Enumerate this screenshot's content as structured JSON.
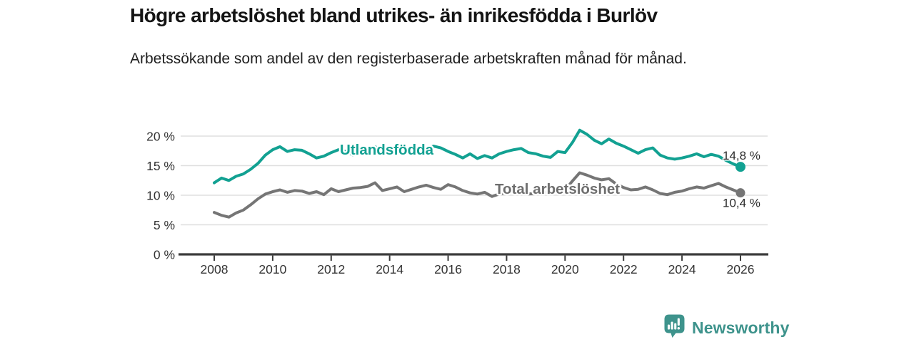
{
  "header": {
    "title": "Högre arbetslöshet bland utrikes- än inrikesfödda i Burlöv",
    "subtitle": "Arbetssökande som andel av den registerbaserade arbetskraften månad för månad."
  },
  "branding": {
    "wordmark": "Newsworthy",
    "color": "#3E938C",
    "icon": "newsworthy-speech-bubble-bar-chart-icon"
  },
  "colors": {
    "background": "#ffffff",
    "title_text": "#141414",
    "body_text": "#1f1f1f",
    "axis": "#3B3B3B",
    "tick_text": "#333333",
    "grid": "#DFDFDF",
    "series_foreign_born": "#12A192",
    "series_total": "#757575",
    "series_total_label": "#6E6E6E",
    "end_label_text": "#2B2B2B"
  },
  "chart_data": {
    "type": "line",
    "title": "Högre arbetslöshet bland utrikes- än inrikesfödda i Burlöv",
    "subtitle": "Arbetssökande som andel av den registerbaserade arbetskraften månad för månad.",
    "xlabel": "",
    "ylabel": "",
    "x_start": 2008,
    "x_step": 0.25,
    "x_end": 2026,
    "xticks": [
      2008,
      2010,
      2012,
      2014,
      2016,
      2018,
      2020,
      2022,
      2024,
      2026
    ],
    "yticks": [
      0,
      5,
      10,
      15,
      20
    ],
    "ytick_labels": [
      "0 %",
      "5 %",
      "10 %",
      "15 %",
      "20 %"
    ],
    "ylim": [
      0,
      22
    ],
    "grid": "horizontal-only",
    "legend": "inline-series-labels",
    "series": [
      {
        "name": "Utlandsfödda",
        "color": "#12A192",
        "label_color": "#12A192",
        "end_label": "14,8 %",
        "end_value": 14.8,
        "label_anchor": {
          "year": 2012.3,
          "value": 16.85
        },
        "values": [
          12.1,
          12.9,
          12.5,
          13.2,
          13.6,
          14.4,
          15.4,
          16.8,
          17.7,
          18.2,
          17.4,
          17.7,
          17.6,
          17.0,
          16.3,
          16.6,
          17.2,
          17.7,
          17.4,
          16.8,
          17.4,
          17.9,
          18.2,
          17.5,
          17.4,
          17.8,
          17.5,
          17.3,
          17.6,
          17.9,
          18.3,
          18.0,
          17.4,
          16.9,
          16.3,
          17.0,
          16.2,
          16.7,
          16.3,
          17.0,
          17.4,
          17.7,
          17.9,
          17.2,
          17.0,
          16.6,
          16.4,
          17.4,
          17.2,
          18.9,
          21.0,
          20.3,
          19.3,
          18.7,
          19.5,
          18.8,
          18.3,
          17.7,
          17.1,
          17.7,
          18.0,
          16.8,
          16.3,
          16.1,
          16.3,
          16.6,
          17.0,
          16.5,
          16.9,
          16.6,
          15.9,
          15.3,
          14.8
        ]
      },
      {
        "name": "Total arbetslöshet",
        "color": "#757575",
        "label_color": "#6E6E6E",
        "end_label": "10,4 %",
        "end_value": 10.4,
        "label_anchor": {
          "year": 2017.6,
          "value": 10.25
        },
        "values": [
          7.1,
          6.6,
          6.3,
          7.0,
          7.5,
          8.4,
          9.4,
          10.2,
          10.6,
          10.9,
          10.5,
          10.8,
          10.7,
          10.3,
          10.6,
          10.1,
          11.1,
          10.6,
          10.9,
          11.2,
          11.3,
          11.5,
          12.1,
          10.8,
          11.1,
          11.4,
          10.6,
          11.0,
          11.4,
          11.7,
          11.3,
          11.0,
          11.8,
          11.4,
          10.8,
          10.4,
          10.2,
          10.5,
          9.8,
          10.2,
          10.4,
          10.6,
          10.4,
          10.2,
          10.3,
          10.5,
          10.4,
          10.6,
          10.9,
          12.4,
          13.8,
          13.4,
          12.9,
          12.6,
          12.8,
          11.9,
          11.3,
          10.9,
          11.0,
          11.4,
          10.9,
          10.3,
          10.1,
          10.5,
          10.7,
          11.1,
          11.4,
          11.2,
          11.6,
          12.0,
          11.4,
          10.9,
          10.4
        ]
      }
    ]
  }
}
